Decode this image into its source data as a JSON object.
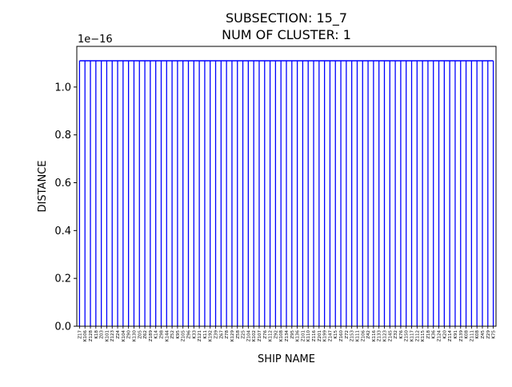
{
  "chart_data": {
    "type": "dendrogram",
    "title": "SUBSECTION: 15_7",
    "subtitle": "NUM OF CLUSTER: 1",
    "xlabel": "SHIP NAME",
    "ylabel": "DISTANCE",
    "y_offset_text": "1e−16",
    "yticks": [
      "0.0",
      "0.2",
      "0.4",
      "0.6",
      "0.8",
      "1.0"
    ],
    "ytick_values": [
      0.0,
      0.2,
      0.4,
      0.6,
      0.8,
      1.0
    ],
    "ylim": [
      0,
      1.17
    ],
    "merge_height": 1.11,
    "link_color": "#0000ff",
    "leaves": [
      "Z17",
      "K106",
      "Z128",
      "K18",
      "Z03",
      "K101",
      "Z123",
      "Z24",
      "K104",
      "Z90",
      "K130",
      "Z05",
      "Z62",
      "Z189",
      "K14",
      "Z98",
      "K144",
      "Z52",
      "K95",
      "Z105",
      "Z96",
      "K33",
      "Z121",
      "K11",
      "K192",
      "Z39",
      "Z67",
      "Z78",
      "K129",
      "Z58",
      "Z25",
      "Z104",
      "K102",
      "Z107",
      "Z76",
      "K112",
      "Z92",
      "K108",
      "Z134",
      "Z95",
      "K136",
      "Z101",
      "K110",
      "Z116",
      "Z201",
      "K199",
      "Z147",
      "K15",
      "Z160",
      "Z72",
      "Z153",
      "K111",
      "Z106",
      "Z42",
      "K116",
      "Z133",
      "K123",
      "Z145",
      "Z32",
      "K76",
      "Z150",
      "K117",
      "Z112",
      "K115",
      "Z18",
      "K36",
      "Z124",
      "K20",
      "Z114",
      "K91",
      "Z139",
      "K08",
      "Z111",
      "K08",
      "Z45",
      "Z29",
      "K75"
    ]
  }
}
